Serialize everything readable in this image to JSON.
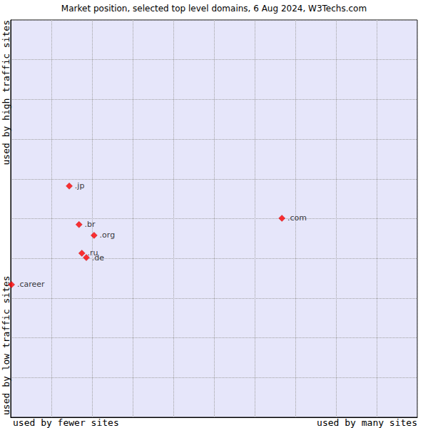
{
  "chart_data": {
    "type": "scatter",
    "title": "Market position, selected top level domains, 6 Aug 2024, W3Techs.com",
    "x_labels": [
      "used by fewer sites",
      "used by many sites"
    ],
    "y_labels": [
      "used by low traffic sites",
      "used by high traffic sites"
    ],
    "point_labels": [
      ".jp",
      ".br",
      ".org",
      ".ru",
      ".de",
      ".com",
      ".career"
    ],
    "x": [
      1.44,
      1.68,
      2.05,
      1.75,
      1.86,
      6.67,
      0.02
    ],
    "values": [
      5.82,
      4.85,
      4.58,
      4.13,
      4.02,
      5.01,
      3.34
    ],
    "xlim": [
      0,
      10
    ],
    "ylim": [
      0,
      10
    ],
    "xticks": [
      0,
      1,
      2,
      3,
      4,
      5,
      6,
      7,
      8,
      9,
      10
    ],
    "yticks": [
      0,
      1,
      2,
      3,
      4,
      5,
      6,
      7,
      8,
      9,
      10
    ],
    "tick_labels": false,
    "grid": true,
    "color": "#ff0000",
    "marker": "diamond"
  }
}
